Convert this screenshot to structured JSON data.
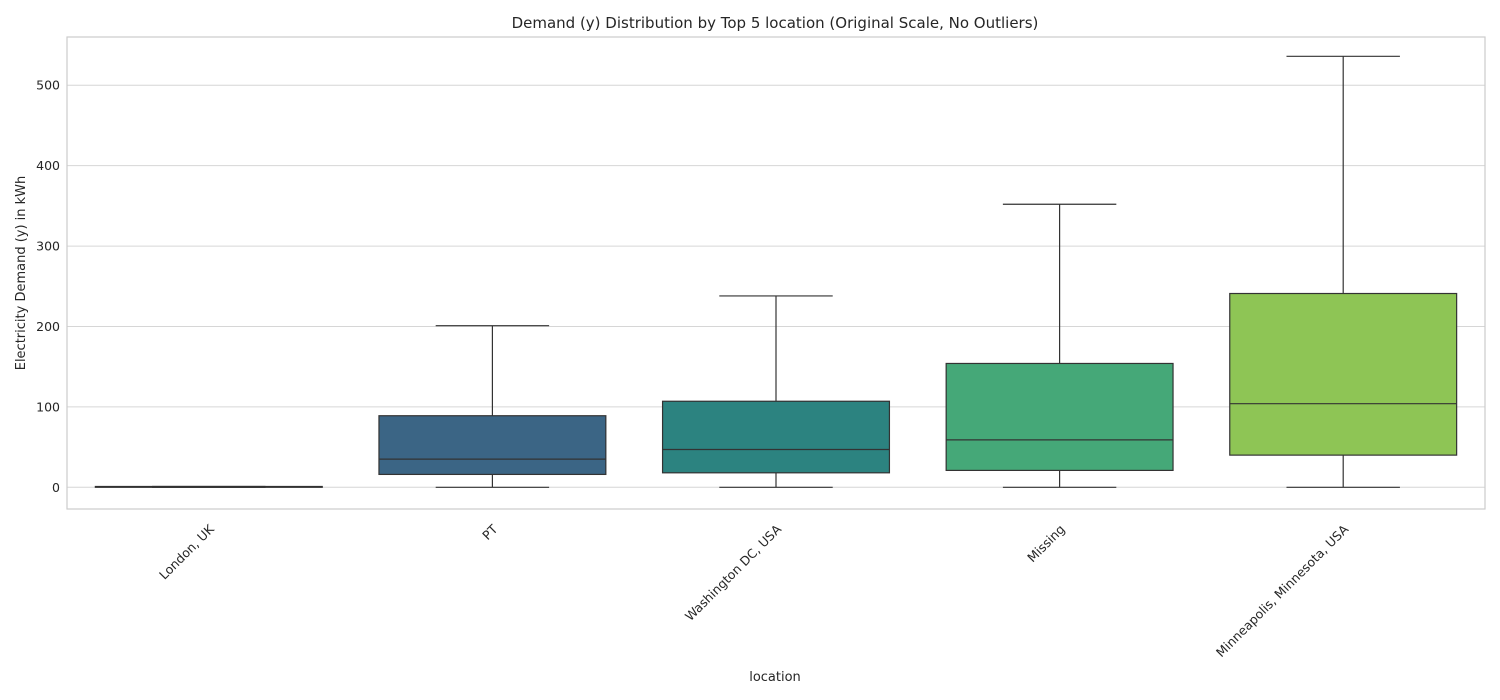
{
  "chart_data": {
    "type": "box",
    "title": "Demand (y) Distribution by Top 5 location (Original Scale, No Outliers)",
    "xlabel": "location",
    "ylabel": "Electricity Demand (y) in kWh",
    "ylim": [
      -27,
      560
    ],
    "yticks": [
      0,
      100,
      200,
      300,
      400,
      500
    ],
    "grid": true,
    "legend": "none",
    "categories": [
      "London, UK",
      "PT",
      "Washington DC, USA",
      "Missing",
      "Minneapolis, Minnesota, USA"
    ],
    "boxes": [
      {
        "category": "London, UK",
        "whisker_low": 0,
        "q1": 0,
        "median": 0.5,
        "q3": 1,
        "whisker_high": 1,
        "color": "#440154"
      },
      {
        "category": "PT",
        "whisker_low": 0,
        "q1": 16,
        "median": 35,
        "q3": 89,
        "whisker_high": 201,
        "color": "#3b6585"
      },
      {
        "category": "Washington DC, USA",
        "whisker_low": 0,
        "q1": 18,
        "median": 47,
        "q3": 107,
        "whisker_high": 238,
        "color": "#2c8380"
      },
      {
        "category": "Missing",
        "whisker_low": 0,
        "q1": 21,
        "median": 59,
        "q3": 154,
        "whisker_high": 352,
        "color": "#45a878"
      },
      {
        "category": "Minneapolis, Minnesota, USA",
        "whisker_low": 0,
        "q1": 40,
        "median": 104,
        "q3": 241,
        "whisker_high": 536,
        "color": "#8ec555"
      }
    ]
  }
}
